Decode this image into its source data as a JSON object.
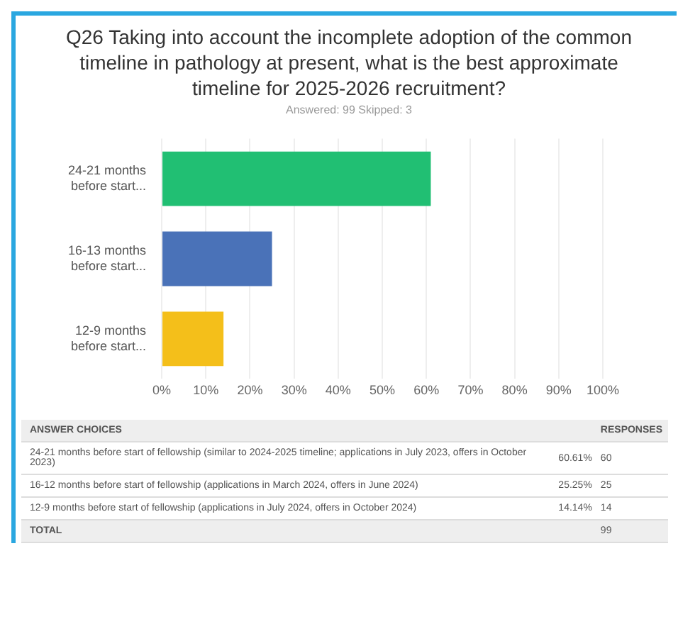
{
  "chart_data": {
    "type": "bar",
    "orientation": "horizontal",
    "title": "Q26 Taking into account the incomplete adoption of the common timeline in pathology at present, what is the best approximate timeline for 2025-2026 recruitment?",
    "subtitle": "Answered: 99    Skipped: 3",
    "categories": [
      "24-21 months before start...",
      "16-13 months before start...",
      "12-9 months before start..."
    ],
    "values": [
      61,
      25,
      14
    ],
    "colors": [
      "#21bf73",
      "#4a72b8",
      "#f4bf1a"
    ],
    "xlim": [
      0,
      100
    ],
    "xticks": [
      {
        "value": 0,
        "label": "0%"
      },
      {
        "value": 10,
        "label": "10%"
      },
      {
        "value": 20,
        "label": "20%"
      },
      {
        "value": 30,
        "label": "30%"
      },
      {
        "value": 40,
        "label": "40%"
      },
      {
        "value": 50,
        "label": "50%"
      },
      {
        "value": 60,
        "label": "60%"
      },
      {
        "value": 70,
        "label": "70%"
      },
      {
        "value": 80,
        "label": "80%"
      },
      {
        "value": 90,
        "label": "90%"
      },
      {
        "value": 100,
        "label": "100%"
      }
    ],
    "grid": "x",
    "legend": false,
    "annotations": [
      "ANSWER CHOICES",
      "RESPONSES",
      "24-21 months before start of fellowship (similar to 2024-2025 timeline; applications in July 2023, offers in October 2023)",
      "60.61%",
      "60",
      "16-12 months before start of fellowship (applications in March 2024, offers in June 2024)",
      "25.25%",
      "25",
      "12-9 months before start of fellowship (applications in July 2024, offers in October 2024)",
      "14.14%",
      "14",
      "TOTAL",
      "99"
    ]
  }
}
